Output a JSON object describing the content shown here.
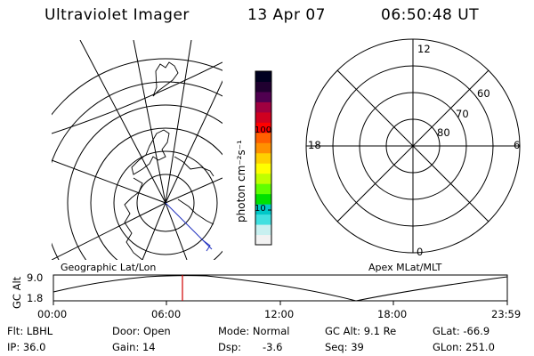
{
  "header": {
    "instrument": "Ultraviolet Imager",
    "date": "13 Apr 07",
    "time": "06:50:48 UT"
  },
  "colorbar": {
    "unit_label": "photon cm⁻²s⁻¹",
    "ticks": [
      "100",
      "10"
    ],
    "colors": [
      "#f2f2f2",
      "#c8f0f0",
      "#40e0e0",
      "#00c8c8",
      "#00e000",
      "#60ff00",
      "#c0ff00",
      "#ffff00",
      "#ffd000",
      "#ff9000",
      "#ff6000",
      "#ff0000",
      "#d00020",
      "#a00040",
      "#500050",
      "#200030",
      "#000020"
    ]
  },
  "geo_panel": {
    "caption": "Geographic Lat/Lon"
  },
  "polar_panel": {
    "caption": "Apex MLat/MLT",
    "mlt_labels": {
      "top": "12",
      "left": "18",
      "right": "6",
      "bottom": "0"
    },
    "lat_labels": [
      "60",
      "70",
      "80"
    ]
  },
  "timeline": {
    "ylabel": "GC Alt",
    "y_ticks": [
      "9.0",
      "1.8"
    ],
    "x_ticks": [
      "00:00",
      "06:00",
      "12:00",
      "18:00",
      "23:59"
    ],
    "marker_color": "#d00000"
  },
  "info": {
    "flt": "Flt: LBHL",
    "ip": "IP: 36.0",
    "door": "Door: Open",
    "gain": "Gain: 14",
    "mode": "Mode: Normal",
    "dsp_label": "Dsp:",
    "dsp_value": "-3.6",
    "gcalt": "GC Alt: 9.1 Re",
    "seq": "Seq: 39",
    "glat": "GLat: -66.9",
    "glon": "GLon: 251.0"
  }
}
